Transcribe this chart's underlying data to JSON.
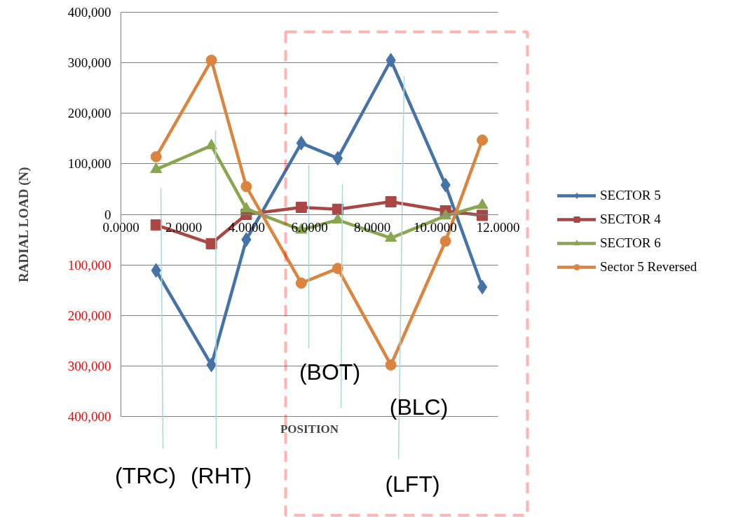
{
  "chart_data": {
    "type": "line",
    "xlabel": "POSITION",
    "ylabel": "RADIAL  LOAD      (N)",
    "x": [
      1.12,
      2.88,
      3.99,
      5.74,
      6.9,
      8.59,
      10.33,
      11.5
    ],
    "series": [
      {
        "name": "SECTOR 5",
        "color": "#4572a7",
        "marker": "diamond",
        "values": [
          -111000,
          -298000,
          -50000,
          141000,
          111000,
          305000,
          58000,
          -144000
        ]
      },
      {
        "name": "SECTOR 4",
        "color": "#aa4643",
        "marker": "square",
        "values": [
          -21000,
          -58000,
          0,
          14000,
          10000,
          25000,
          7000,
          -2000
        ]
      },
      {
        "name": "SECTOR 6",
        "color": "#89a54e",
        "marker": "triangle",
        "values": [
          89000,
          136000,
          11000,
          -31000,
          -11000,
          -47000,
          -3000,
          18000
        ]
      },
      {
        "name": "Sector 5 Reversed",
        "color": "#db843d",
        "marker": "circle",
        "values": [
          114000,
          305000,
          55000,
          -136000,
          -107000,
          -298000,
          -53000,
          147000
        ]
      }
    ],
    "xlim": [
      0,
      12
    ],
    "xticks": [
      {
        "value": 0,
        "label": "0.0000"
      },
      {
        "value": 2,
        "label": "2.0000"
      },
      {
        "value": 4,
        "label": "4.0000"
      },
      {
        "value": 6,
        "label": "6.0000"
      },
      {
        "value": 8,
        "label": "8.0000"
      },
      {
        "value": 10,
        "label": "10.0000"
      },
      {
        "value": 12,
        "label": "12.0000"
      }
    ],
    "ylim": [
      -400000,
      400000
    ],
    "yticks": [
      {
        "value": 400000,
        "label": "400,000"
      },
      {
        "value": 300000,
        "label": "300,000"
      },
      {
        "value": 200000,
        "label": "200,000"
      },
      {
        "value": 100000,
        "label": "100,000"
      },
      {
        "value": 0,
        "label": "0"
      },
      {
        "value": -100000,
        "label": "100,000"
      },
      {
        "value": -200000,
        "label": "200,000"
      },
      {
        "value": -300000,
        "label": "300,000"
      },
      {
        "value": -400000,
        "label": "400,000"
      }
    ],
    "grid": "y",
    "legend": "right",
    "annotations": [
      "(TRC)",
      "(RHT)",
      "(BOT)",
      "(BLC)",
      "(LFT)"
    ]
  }
}
